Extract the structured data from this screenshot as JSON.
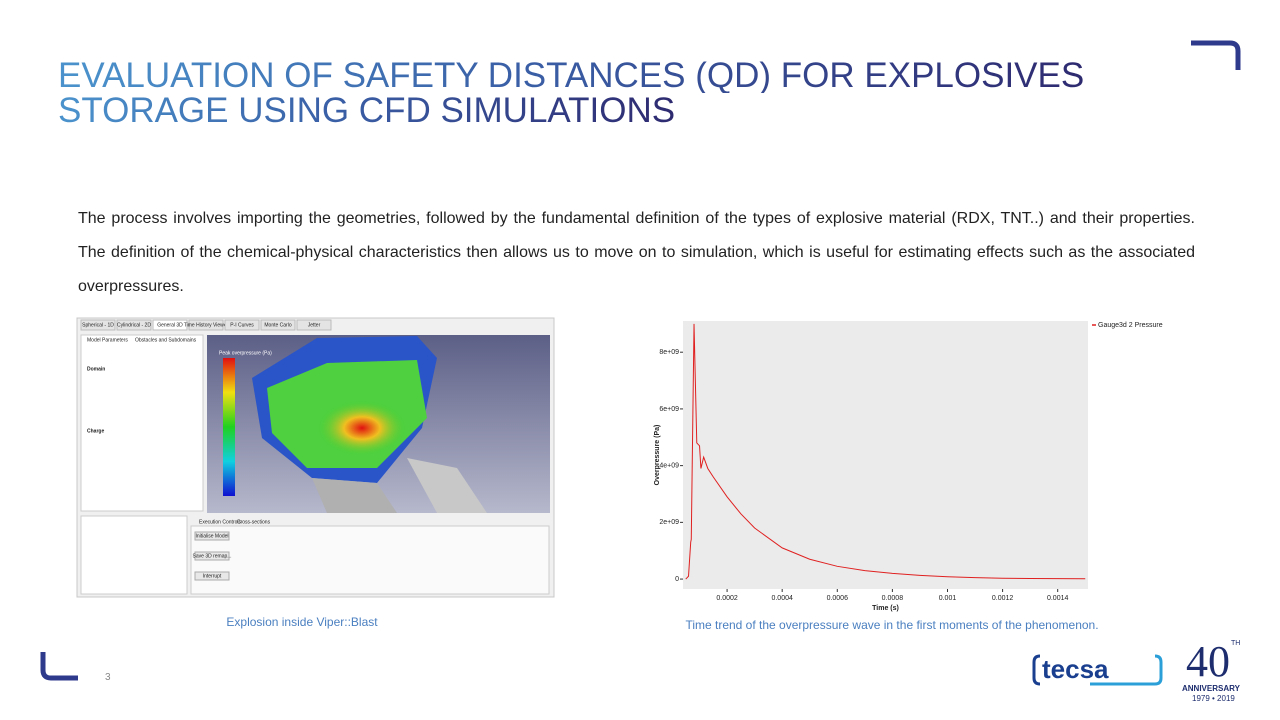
{
  "title": [
    "EVALUATION OF SAFETY DISTANCES (QD) FOR EXPLOSIVES",
    "STORAGE USING CFD SIMULATIONS"
  ],
  "body": "The process involves importing the geometries, followed by the fundamental definition of the types of explosive material (RDX, TNT..) and their properties. The definition of the chemical-physical characteristics then allows us to move on to simulation, which is useful for estimating effects such as the associated overpressures.",
  "screenshot": {
    "tabs": [
      "Spherical - 1D",
      "Cylindrical - 2D",
      "General 3D",
      "Time History Viewer",
      "P-I Curves",
      "Monte Carlo",
      "Jetter"
    ],
    "panel_tabs": [
      "Model Parameters",
      "Obstacles and Subdomains"
    ],
    "sections": [
      "Domain",
      "Charge"
    ],
    "legend_title": "Peak overpressure (Pa)",
    "bottom_tabs": [
      "Execution Controls",
      "Cross-sections"
    ],
    "buttons": [
      "Initialise Model",
      "Save 3D remap...",
      "Interrupt"
    ],
    "caption": "Explosion inside Viper::Blast"
  },
  "chart_data": {
    "type": "line",
    "x": [
      5e-05,
      6e-05,
      6.8e-05,
      7e-05,
      8e-05,
      9e-05,
      0.0001,
      0.000105,
      0.000115,
      0.00013,
      0.00015,
      0.0002,
      0.00025,
      0.0003,
      0.0004,
      0.0005,
      0.0006,
      0.0007,
      0.0008,
      0.0009,
      0.001,
      0.0011,
      0.0012,
      0.0013,
      0.0015
    ],
    "series": [
      {
        "name": "Gauge3d 2 Pressure",
        "color": "#e02020",
        "values": [
          0,
          100000000,
          1300000000,
          1400000000,
          9000000000,
          4800000000,
          4700000000,
          3900000000,
          4300000000,
          3900000000,
          3600000000,
          2900000000,
          2300000000,
          1800000000,
          1100000000,
          700000000,
          450000000,
          300000000,
          200000000,
          130000000,
          80000000,
          50000000,
          30000000,
          20000000,
          10000000
        ]
      }
    ],
    "xlim": [
      4e-05,
      0.00151
    ],
    "ylim": [
      -350000000,
      9100000000
    ],
    "xticks": [
      0.0002,
      0.0004,
      0.0006,
      0.0008,
      0.001,
      0.0012,
      0.0014
    ],
    "yticks": [
      0,
      {
        "value": 2000000000,
        "label": "2e+09"
      },
      {
        "value": 4000000000,
        "label": "4e+09"
      },
      {
        "value": 6000000000,
        "label": "6e+09"
      },
      {
        "value": 8000000000,
        "label": "8e+09"
      }
    ],
    "xlabel": "Time (s)",
    "ylabel": "Overpressure (Pa)",
    "caption": "Time trend  of the overpressure  wave in the first moments of the phenomenon."
  },
  "page_number": "3",
  "logo": {
    "brand": "tecsa",
    "number": "40",
    "suffix": "TH",
    "word": "ANNIVERSARY",
    "years": "1979 • 2019"
  }
}
